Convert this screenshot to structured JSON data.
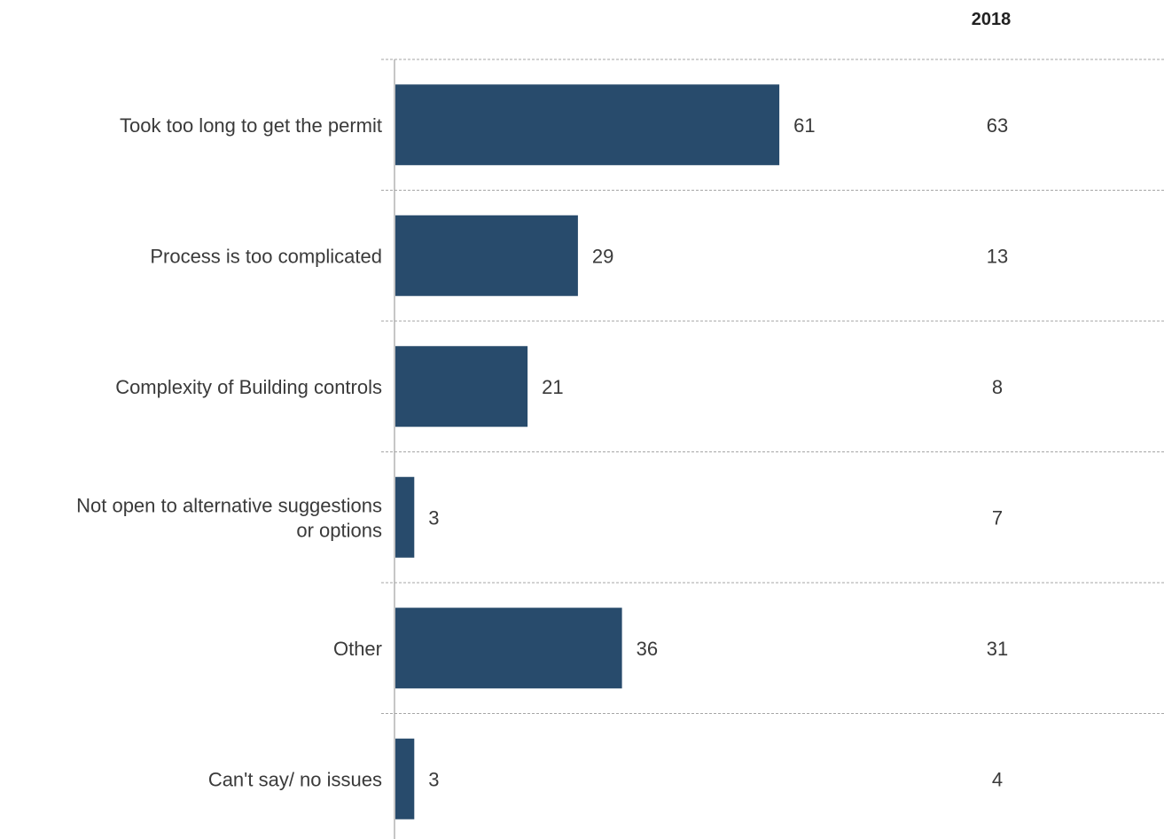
{
  "chart_data": {
    "type": "bar",
    "orientation": "horizontal",
    "categories": [
      [
        "Took too long to get the permit"
      ],
      [
        "Process is too complicated"
      ],
      [
        "Complexity of Building controls"
      ],
      [
        "Not open to alternative suggestions",
        "or options"
      ],
      [
        "Other"
      ],
      [
        "Can't say/ no issues"
      ]
    ],
    "series": [
      {
        "values": [
          61,
          29,
          21,
          3,
          36,
          3
        ]
      }
    ],
    "comparison_column": {
      "header": "2018",
      "values": [
        63,
        13,
        8,
        7,
        31,
        4
      ]
    },
    "xlim": [
      0,
      100
    ],
    "grid": false,
    "bar_color": "#284b6c"
  }
}
